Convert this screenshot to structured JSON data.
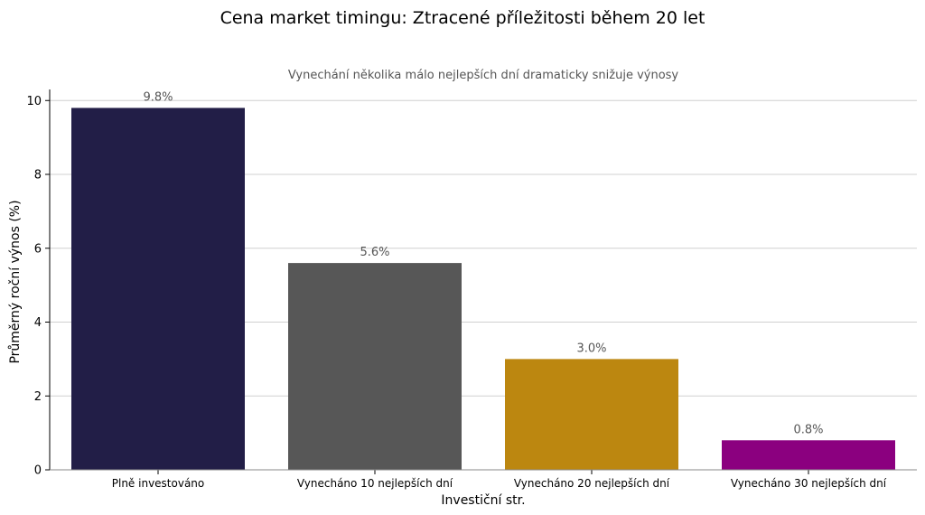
{
  "chart_data": {
    "type": "bar",
    "title": "Cena market timingu: Ztracené příležitosti během 20 let",
    "subtitle": "Vynechání několika málo nejlepších dní dramaticky snižuje výnosy",
    "xlabel": "Investiční str.",
    "ylabel": "Průměrný roční výnos (%)",
    "categories": [
      "Plně investováno",
      "Vynecháno 10 nejlepších dní",
      "Vynecháno 20 nejlepších dní",
      "Vynecháno 30 nejlepších dní"
    ],
    "values": [
      9.8,
      5.6,
      3.0,
      0.8
    ],
    "data_labels": [
      "9.8%",
      "5.6%",
      "3.0%",
      "0.8%"
    ],
    "colors": [
      "#221e47",
      "#575757",
      "#bc8710",
      "#8b007f"
    ],
    "ylim": [
      0,
      10.3
    ],
    "yticks": [
      0,
      2,
      4,
      6,
      8,
      10
    ],
    "grid": "horizontal",
    "legend": "none"
  }
}
